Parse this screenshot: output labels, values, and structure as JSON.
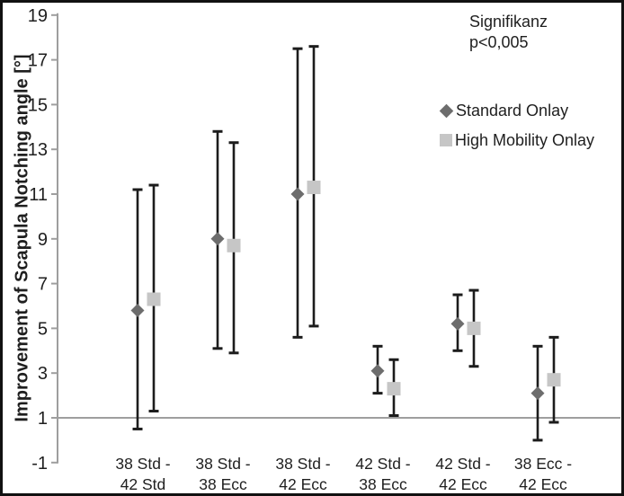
{
  "figure": {
    "background": "#ffffff",
    "border_color": "#111111"
  },
  "annotation": {
    "line1": "Signifikanz",
    "line2": "p<0,005"
  },
  "legend": [
    {
      "label": "Standard Onlay",
      "marker": "diamond-icon",
      "color": "#6d6d6d"
    },
    {
      "label": "High Mobility Onlay",
      "marker": "square-icon",
      "color": "#c6c6c6"
    }
  ],
  "chart_data": {
    "type": "scatter",
    "subtype": "point-estimates-with-error-bars",
    "title": "",
    "xlabel": "",
    "ylabel": "Improvement of Scapula Notching angle [°]",
    "ylim": [
      -1,
      19
    ],
    "yticks": [
      19,
      17,
      15,
      13,
      11,
      9,
      7,
      5,
      3,
      1,
      -1
    ],
    "baseline_gridline_y": 1,
    "grid": "single horizontal line at y=1",
    "legend_position": "upper right inside plot",
    "annotation_text": "Signifikanz p<0,005",
    "categories": [
      "38 Std - 42 Std",
      "38 Std - 38 Ecc",
      "38 Std - 42 Ecc",
      "42 Std - 38 Ecc",
      "42 Std - 42 Ecc",
      "38 Ecc - 42 Ecc"
    ],
    "categories_lines": [
      [
        "38 Std -",
        "42 Std"
      ],
      [
        "38 Std -",
        "38 Ecc"
      ],
      [
        "38 Std -",
        "42 Ecc"
      ],
      [
        "42 Std -",
        "38 Ecc"
      ],
      [
        "42 Std -",
        "42 Ecc"
      ],
      [
        "38 Ecc -",
        "42 Ecc"
      ]
    ],
    "series": [
      {
        "name": "Standard Onlay",
        "marker": "diamond",
        "color": "#6d6d6d",
        "values": [
          5.8,
          9.0,
          11.0,
          3.1,
          5.2,
          2.1
        ],
        "err_low": [
          0.5,
          4.1,
          4.6,
          2.1,
          4.0,
          0.0
        ],
        "err_high": [
          11.2,
          13.8,
          17.5,
          4.2,
          6.5,
          4.2
        ]
      },
      {
        "name": "High Mobility Onlay",
        "marker": "square",
        "color": "#c6c6c6",
        "values": [
          6.3,
          8.7,
          11.3,
          2.3,
          5.0,
          2.7
        ],
        "err_low": [
          1.3,
          3.9,
          5.1,
          1.1,
          3.3,
          0.8
        ],
        "err_high": [
          11.4,
          13.3,
          17.6,
          3.6,
          6.7,
          4.6
        ]
      }
    ],
    "colors": {
      "error_bar": "#1c1c1c",
      "axis": "#9e9e9e",
      "text": "#1f1f1f"
    }
  }
}
